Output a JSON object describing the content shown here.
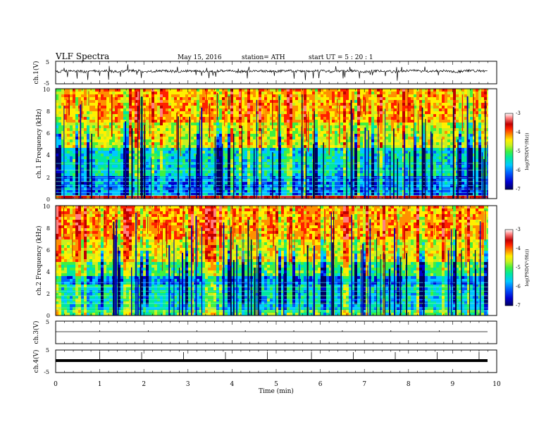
{
  "header": {
    "title": "VLF  Spectra",
    "date": "May 15, 2016",
    "station": "station= ATH",
    "start": "start  UT  =   5  : 20 : 1"
  },
  "chart_data": [
    {
      "type": "line",
      "id": "ch1-waveform",
      "ylabel": "ch.1(V)",
      "ylim": [
        -5,
        5
      ],
      "yticks": [
        "5",
        "-5"
      ],
      "xlim": [
        0,
        10
      ],
      "series": [
        {
          "trace": "noisy waveform around 0 V with negative spikes",
          "baseline_v": 0
        }
      ]
    },
    {
      "type": "heatmap",
      "id": "ch1-spectrogram",
      "ylabel": "ch.1 Frequency (kHz)",
      "ylim": [
        0,
        10
      ],
      "yticks": [
        "0",
        "2",
        "4",
        "6",
        "8",
        "10"
      ],
      "xlim": [
        0,
        9.8
      ],
      "colorbar": {
        "label": "log(PSD(V²/Hz))",
        "range": [
          -7,
          -3
        ],
        "ticks": [
          "-3",
          "-4",
          "-5",
          "-6",
          "-7"
        ]
      }
    },
    {
      "type": "heatmap",
      "id": "ch2-spectrogram",
      "ylabel": "ch.2 Frequency (kHz)",
      "ylim": [
        0,
        10
      ],
      "yticks": [
        "0",
        "2",
        "4",
        "6",
        "8",
        "10"
      ],
      "xlim": [
        0,
        9.8
      ],
      "colorbar": {
        "label": "log(PSD(V²/Hz))",
        "range": [
          -7,
          -3
        ],
        "ticks": [
          "-3",
          "-4",
          "-5",
          "-6",
          "-7"
        ]
      }
    },
    {
      "type": "line",
      "id": "ch3-waveform",
      "ylabel": "ch.3(V)",
      "ylim": [
        -5,
        5
      ],
      "yticks": [
        "5"
      ],
      "xlim": [
        0,
        10
      ],
      "series": [
        {
          "trace": "flat line near 0 V",
          "baseline_v": 0
        }
      ]
    },
    {
      "type": "line",
      "id": "ch4-waveform",
      "ylabel": "ch.4(V)",
      "ylim": [
        -5,
        5
      ],
      "yticks": [
        "5",
        "-5"
      ],
      "xlim": [
        0,
        10
      ],
      "series": [
        {
          "trace": "thick flat line near 0 V",
          "baseline_v": 0
        }
      ]
    }
  ],
  "xaxis": {
    "label": "Time  (min)",
    "range": [
      0,
      10
    ],
    "ticks": [
      "0",
      "1",
      "2",
      "3",
      "4",
      "5",
      "6",
      "7",
      "8",
      "9",
      "10"
    ]
  },
  "colormap": [
    "#000060",
    "#0000d0",
    "#0060ff",
    "#00c8ff",
    "#00e8a0",
    "#40f040",
    "#c8f020",
    "#fff000",
    "#ff9000",
    "#ff2000",
    "#c00000",
    "#ff8080",
    "#ffffff"
  ]
}
